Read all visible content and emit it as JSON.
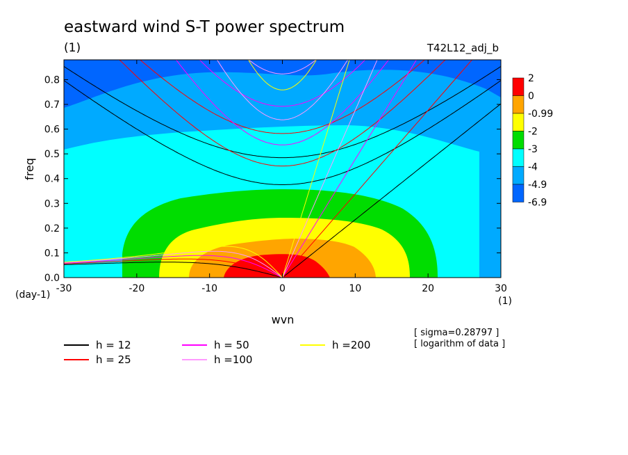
{
  "chart_data": {
    "type": "heatmap",
    "title": "eastward wind S-T power spectrum",
    "subtitle": "(1)",
    "run_label": "T42L12_adj_b",
    "xlabel": "wvn",
    "ylabel": "freq",
    "xunit": "(1)",
    "yunit": "(day-1)",
    "xlim": [
      -30,
      30
    ],
    "ylim": [
      0,
      0.88
    ],
    "xticks": [
      -30,
      -20,
      -10,
      0,
      10,
      20,
      30
    ],
    "yticks": [
      0.0,
      0.1,
      0.2,
      0.3,
      0.4,
      0.5,
      0.6,
      0.7,
      0.8
    ],
    "colorbar": {
      "labels": [
        "2",
        "0",
        "-0.99",
        "-2",
        "-3",
        "-4",
        "-4.9",
        "-6.9"
      ],
      "colors": [
        "#ff0000",
        "#ffa500",
        "#ffff00",
        "#00dd00",
        "#00ffff",
        "#00aaff",
        "#0066ff"
      ]
    },
    "notes": [
      "[ sigma=0.28797 ]",
      "[ logarithm of data ]"
    ],
    "legend": [
      {
        "name": "h = 12",
        "color": "#000000"
      },
      {
        "name": "h = 25",
        "color": "#ff0000"
      },
      {
        "name": "h = 50",
        "color": "#ff00ff"
      },
      {
        "name": "h =100",
        "color": "#ff99ff"
      },
      {
        "name": "h =200",
        "color": "#ffff00"
      }
    ]
  }
}
